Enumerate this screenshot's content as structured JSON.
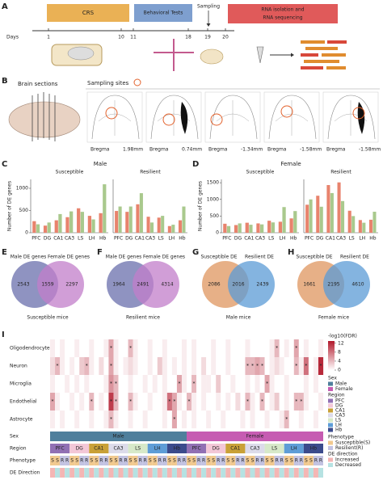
{
  "panel_labels": [
    "A",
    "B",
    "C",
    "D",
    "E",
    "F",
    "G",
    "H",
    "I"
  ],
  "timeline": {
    "days_label": "Days",
    "days": [
      1,
      10,
      11,
      18,
      19,
      20
    ],
    "stages": [
      "CRS",
      "Behavioral Tests",
      "Sampling",
      "RNA isolation and",
      "RNA sequencing"
    ]
  },
  "brain": {
    "title": "Brain sections",
    "sites_title": "Sampling sites",
    "bregma_label": "Bregma",
    "bregma": [
      "1.98mm",
      "0.74mm",
      "-1.34mm",
      "-1.58mm",
      "-1.58mm"
    ]
  },
  "sex_titles": [
    "Male",
    "Female"
  ],
  "chart_data": [
    {
      "type": "bar",
      "title": "Susceptible",
      "ylabel": "Number of DE genes",
      "categories": [
        "PFC",
        "DG",
        "CA1",
        "CA3",
        "LS",
        "LH",
        "Hb"
      ],
      "series": [
        {
          "color": "#e8836d",
          "values": [
            260,
            160,
            280,
            350,
            550,
            380,
            440
          ]
        },
        {
          "color": "#a9c98d",
          "values": [
            190,
            230,
            420,
            480,
            470,
            300,
            1090
          ]
        }
      ],
      "ylim": [
        0,
        1200
      ],
      "yticks": [
        0,
        500,
        1000
      ]
    },
    {
      "type": "bar",
      "title": "Resilient",
      "categories": [
        "PFC",
        "DG",
        "CA1",
        "CA3",
        "LS",
        "LH",
        "Hb"
      ],
      "series": [
        {
          "color": "#e8836d",
          "values": [
            490,
            470,
            640,
            360,
            340,
            150,
            280
          ]
        },
        {
          "color": "#a9c98d",
          "values": [
            590,
            590,
            890,
            230,
            380,
            180,
            590
          ]
        }
      ],
      "ylim": [
        0,
        1200
      ]
    },
    {
      "type": "bar",
      "title": "Susceptible",
      "ylabel": "Number of DE genes",
      "categories": [
        "PFC",
        "DG",
        "CA1",
        "CA3",
        "LS",
        "LH",
        "Hb"
      ],
      "series": [
        {
          "color": "#e8836d",
          "values": [
            270,
            230,
            300,
            280,
            360,
            330,
            430
          ]
        },
        {
          "color": "#a9c98d",
          "values": [
            200,
            280,
            240,
            250,
            310,
            770,
            650
          ]
        }
      ],
      "ylim": [
        0,
        1600
      ],
      "yticks": [
        0,
        500,
        1000,
        1500
      ]
    },
    {
      "type": "bar",
      "title": "Resilient",
      "categories": [
        "PFC",
        "DG",
        "CA1",
        "CA3",
        "LS",
        "LH",
        "Hb"
      ],
      "series": [
        {
          "color": "#e8836d",
          "values": [
            840,
            1110,
            1430,
            1510,
            660,
            380,
            390
          ]
        },
        {
          "color": "#a9c98d",
          "values": [
            1000,
            780,
            1190,
            950,
            500,
            300,
            630
          ]
        }
      ],
      "ylim": [
        0,
        1600
      ]
    }
  ],
  "venns": [
    {
      "sets": [
        "Male DE genes",
        "Female DE genes"
      ],
      "counts": [
        2543,
        1559,
        2297
      ],
      "caption": "Susceptible mice",
      "colors": [
        "#7b80b6",
        "#c27dca"
      ]
    },
    {
      "sets": [
        "Male DE genes",
        "Female DE genes"
      ],
      "counts": [
        1964,
        2491,
        4314
      ],
      "caption": "Resilient mice",
      "colors": [
        "#7b80b6",
        "#c27dca"
      ]
    },
    {
      "sets": [
        "Susceptible DE",
        "Resilient DE"
      ],
      "counts": [
        2086,
        2016,
        2439
      ],
      "caption": "Male mice",
      "colors": [
        "#e3a272",
        "#5b9bd5"
      ]
    },
    {
      "sets": [
        "Susceptible DE",
        "Resilient DE"
      ],
      "counts": [
        1661,
        2195,
        4610
      ],
      "caption": "Female mice",
      "colors": [
        "#e3a272",
        "#5b9bd5"
      ]
    }
  ],
  "heatmap": {
    "sig_symbol": "*",
    "clim": [
      0,
      13
    ],
    "colorbar_title": "-log10(FDR)",
    "colorbar_ticks": [
      0,
      4,
      8,
      12
    ],
    "rows": [
      {
        "label": "Oligodendrocyte",
        "values": [
          1,
          0,
          1,
          0,
          0,
          1,
          0,
          0,
          1,
          0,
          0,
          1,
          5,
          1,
          0,
          0,
          4,
          1,
          0,
          0,
          1,
          0,
          0,
          1,
          0,
          0,
          0,
          1,
          0,
          1,
          0,
          0,
          0,
          1,
          0,
          0,
          1,
          0,
          0,
          0,
          1,
          0,
          0,
          0,
          0,
          1,
          4,
          0,
          1,
          0,
          5,
          0,
          1,
          0,
          0,
          1
        ],
        "significant": [
          12,
          16,
          46,
          50
        ]
      },
      {
        "label": "Neuron",
        "values": [
          2,
          4,
          1,
          0,
          1,
          0,
          3,
          4,
          1,
          0,
          2,
          0,
          5,
          1,
          0,
          1,
          2,
          1,
          0,
          0,
          1,
          0,
          3,
          1,
          0,
          1,
          0,
          1,
          0,
          1,
          0,
          2,
          0,
          1,
          0,
          0,
          1,
          0,
          0,
          0,
          4,
          4,
          5,
          4,
          0,
          1,
          2,
          1,
          0,
          0,
          4,
          1,
          8,
          0,
          1,
          12
        ],
        "significant": [
          1,
          7,
          12,
          40,
          41,
          42,
          43,
          50,
          52,
          55
        ]
      },
      {
        "label": "Microglia",
        "values": [
          1,
          0,
          0,
          1,
          0,
          1,
          0,
          1,
          0,
          0,
          0,
          1,
          6,
          4,
          0,
          0,
          1,
          0,
          0,
          1,
          0,
          1,
          0,
          1,
          0,
          0,
          5,
          1,
          0,
          4,
          0,
          1,
          1,
          0,
          3,
          0,
          0,
          1,
          0,
          0,
          1,
          0,
          1,
          0,
          5,
          1,
          0,
          0,
          1,
          0,
          0,
          0,
          1,
          0,
          1,
          0
        ],
        "significant": [
          12,
          13,
          26,
          29,
          44
        ]
      },
      {
        "label": "Endothelial",
        "values": [
          5,
          1,
          0,
          0,
          1,
          0,
          1,
          0,
          4,
          0,
          1,
          0,
          11,
          4,
          0,
          0,
          4,
          1,
          0,
          0,
          1,
          0,
          0,
          1,
          8,
          5,
          1,
          0,
          4,
          1,
          0,
          1,
          0,
          0,
          1,
          0,
          1,
          0,
          2,
          0,
          4,
          1,
          0,
          4,
          0,
          1,
          3,
          0,
          1,
          0,
          4,
          4,
          1,
          0,
          0,
          1
        ],
        "significant": [
          0,
          8,
          12,
          13,
          16,
          24,
          25,
          28,
          40,
          43,
          50,
          51
        ]
      },
      {
        "label": "Astrocyte",
        "values": [
          1,
          0,
          1,
          0,
          0,
          1,
          0,
          0,
          1,
          0,
          0,
          1,
          4,
          1,
          0,
          0,
          1,
          0,
          0,
          1,
          0,
          0,
          0,
          1,
          0,
          5,
          0,
          1,
          0,
          1,
          0,
          0,
          1,
          0,
          0,
          1,
          0,
          0,
          0,
          1,
          0,
          1,
          0,
          0,
          1,
          0,
          0,
          1,
          4,
          0,
          0,
          1,
          0,
          0,
          1,
          0
        ],
        "significant": [
          12,
          25,
          48
        ]
      }
    ],
    "annotation_labels": [
      "Sex",
      "Region",
      "Phenotype",
      "DE Direction"
    ],
    "sex": {
      "title": "Sex",
      "levels": [
        {
          "name": "Male",
          "color": "#4f7f9c"
        },
        {
          "name": "Female",
          "color": "#c65cb2"
        }
      ]
    },
    "region": {
      "title": "Region",
      "levels": [
        {
          "name": "PFC",
          "color": "#9170b4"
        },
        {
          "name": "DG",
          "color": "#f3c7d7"
        },
        {
          "name": "CA1",
          "color": "#c9a137"
        },
        {
          "name": "CA3",
          "color": "#dcdbea"
        },
        {
          "name": "LS",
          "color": "#d7e9c9"
        },
        {
          "name": "LH",
          "color": "#5e9dd7"
        },
        {
          "name": "Hb",
          "color": "#3b4b8c"
        }
      ]
    },
    "phenotype": {
      "title": "Phenotype",
      "levels": [
        {
          "name": "Susceptible(S)",
          "short": "S",
          "color": "#f1c98f"
        },
        {
          "name": "Resilient(R)",
          "short": "R",
          "color": "#c3c3e2"
        }
      ]
    },
    "direction": {
      "title": "DE direction",
      "levels": [
        {
          "name": "Increased",
          "color": "#f4b6b4"
        },
        {
          "name": "Decreased",
          "color": "#b6e2e2"
        }
      ]
    }
  }
}
